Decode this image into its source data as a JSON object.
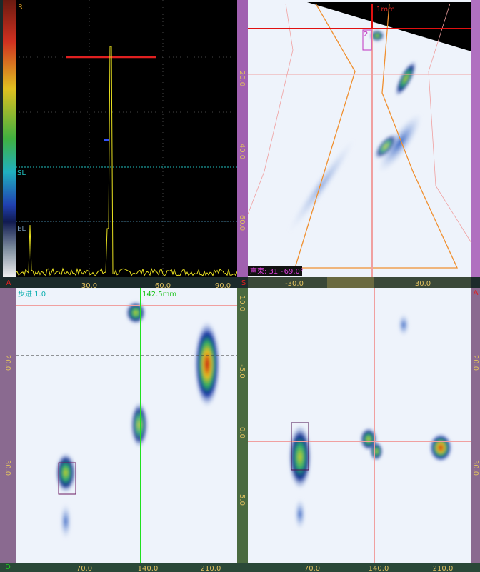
{
  "ascan": {
    "gates": [
      "RL",
      "SL",
      "EL"
    ],
    "x_axis": [
      "30.0",
      "60.0",
      "90.0"
    ]
  },
  "sscan": {
    "y_axis": [
      "20.0",
      "40.0",
      "60.0"
    ],
    "x_axis": [
      "-30.0",
      "30.0"
    ],
    "cursor_label": "1mm",
    "group": "2",
    "beam": "声束: 31~69.0°"
  },
  "panel_letters": [
    "A",
    "S",
    "D",
    "A"
  ],
  "bscan": {
    "step": "步进 1.0",
    "cursor": "142.5mm",
    "y_axis": [
      "20.0",
      "30.0"
    ],
    "x_axis": [
      "70.0",
      "140.0",
      "210.0"
    ]
  },
  "cscan": {
    "y_axis": [
      "10.0",
      "-5.0",
      "0.0",
      "5.0"
    ],
    "right_axis": [
      "20.0",
      "30.0"
    ],
    "x_axis": [
      "70.0",
      "140.0",
      "210.0"
    ]
  }
}
